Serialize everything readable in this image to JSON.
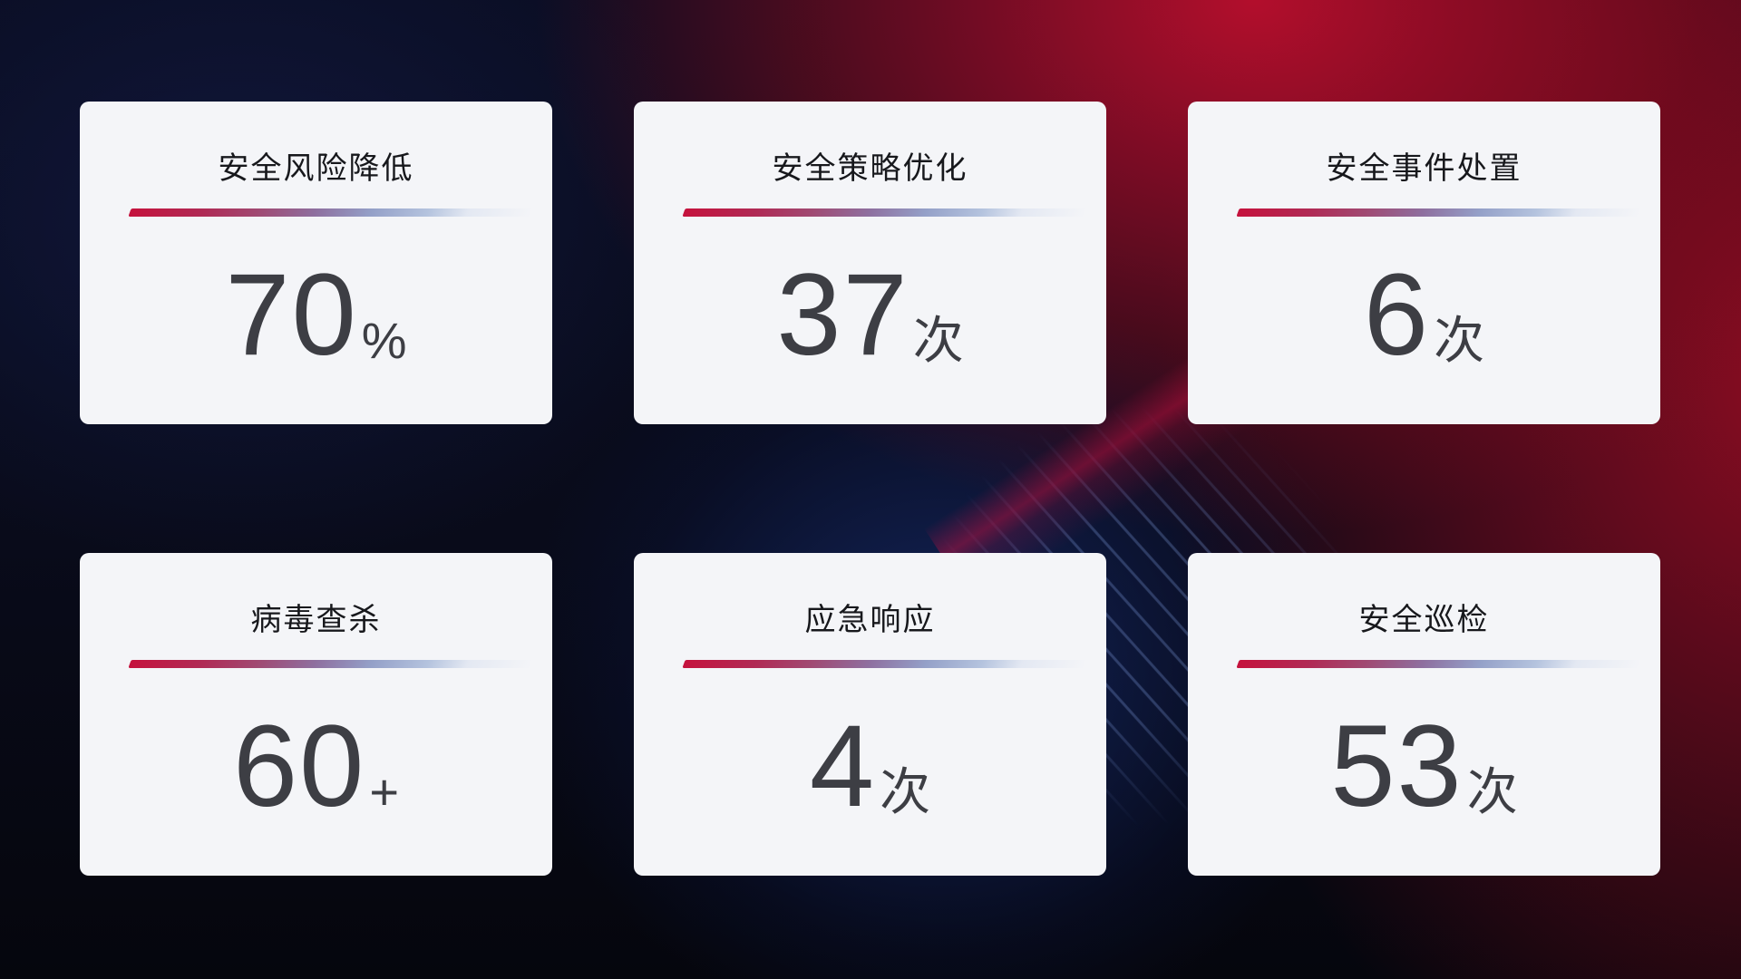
{
  "cards": [
    {
      "title": "安全风险降低",
      "value": "70",
      "unit": "%"
    },
    {
      "title": "安全策略优化",
      "value": "37",
      "unit": "次"
    },
    {
      "title": "安全事件处置",
      "value": "6",
      "unit": "次"
    },
    {
      "title": "病毒查杀",
      "value": "60",
      "unit": "+"
    },
    {
      "title": "应急响应",
      "value": "4",
      "unit": "次"
    },
    {
      "title": "安全巡检",
      "value": "53",
      "unit": "次"
    }
  ],
  "colors": {
    "card_background": "#f4f5f8",
    "title_text": "#17181c",
    "value_text": "#3d3e44",
    "accent_line_start_red": "#c5123d",
    "accent_line_end_blue": "#b4c3de",
    "background_navy": "#0a0d22",
    "background_red": "#8c1020"
  }
}
